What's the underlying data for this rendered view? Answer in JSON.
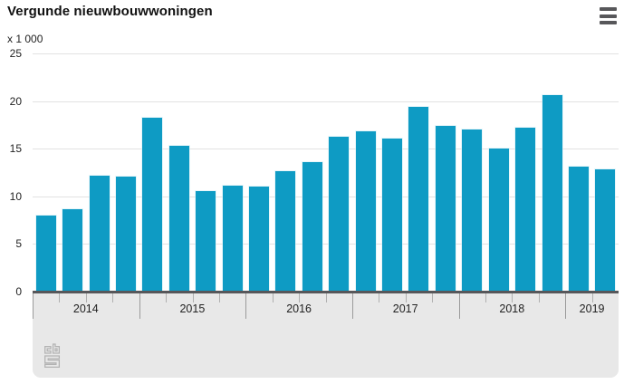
{
  "header": {
    "title": "Vergunde nieuwbouwwoningen",
    "unit_label": "x 1 000",
    "menu_icon": "hamburger-menu-icon"
  },
  "chart_data": {
    "type": "bar",
    "title": "Vergunde nieuwbouwwoningen",
    "unit": "x 1 000",
    "categories": [
      "2014-Q1",
      "2014-Q2",
      "2014-Q3",
      "2014-Q4",
      "2015-Q1",
      "2015-Q2",
      "2015-Q3",
      "2015-Q4",
      "2016-Q1",
      "2016-Q2",
      "2016-Q3",
      "2016-Q4",
      "2017-Q1",
      "2017-Q2",
      "2017-Q3",
      "2017-Q4",
      "2018-Q1",
      "2018-Q2",
      "2018-Q3",
      "2018-Q4",
      "2019-Q1",
      "2019-Q2"
    ],
    "values": [
      8.0,
      8.7,
      12.2,
      12.1,
      18.3,
      15.3,
      10.6,
      11.1,
      11.0,
      12.6,
      13.6,
      16.3,
      16.8,
      16.1,
      19.4,
      17.4,
      17.0,
      15.0,
      17.2,
      20.6,
      13.1,
      12.8
    ],
    "x_year_groups": [
      {
        "label": "2014",
        "bars": 4
      },
      {
        "label": "2015",
        "bars": 4
      },
      {
        "label": "2016",
        "bars": 4
      },
      {
        "label": "2017",
        "bars": 4
      },
      {
        "label": "2018",
        "bars": 4
      },
      {
        "label": "2019",
        "bars": 2
      }
    ],
    "y_ticks": [
      0,
      5,
      10,
      15,
      20,
      25
    ],
    "ylim": [
      0,
      25
    ],
    "grid": true,
    "legend": "none",
    "bar_color": "#0e9bc4",
    "axis_color": "#57575a",
    "gridline_color": "#e2e2e2",
    "footer_panel_color": "#e8e8e8",
    "logo": "cbs-logo"
  }
}
